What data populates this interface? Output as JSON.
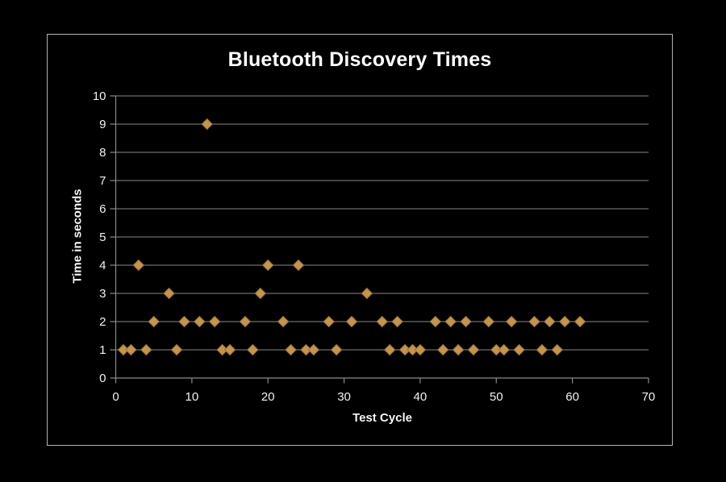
{
  "chart_data": {
    "type": "scatter",
    "title": "Bluetooth Discovery Times",
    "xlabel": "Test Cycle",
    "ylabel": "Time in seconds",
    "xlim": [
      0,
      70
    ],
    "ylim": [
      0,
      10
    ],
    "x_ticks": [
      0,
      10,
      20,
      30,
      40,
      50,
      60,
      70
    ],
    "y_ticks": [
      0,
      1,
      2,
      3,
      4,
      5,
      6,
      7,
      8,
      9,
      10
    ],
    "grid": true,
    "legend": "none",
    "marker": "diamond",
    "colors": {
      "background": "#000000",
      "marker_fill": "#C6954A",
      "marker_edge": "#9b7336",
      "gridline": "#6e6e6e",
      "axis": "#8a8a8a",
      "tick_text": "#f1f1f1",
      "title_text": "#ffffff",
      "frame_border": "#b3b3b3"
    },
    "points": [
      [
        1,
        1
      ],
      [
        2,
        1
      ],
      [
        3,
        4
      ],
      [
        4,
        1
      ],
      [
        5,
        2
      ],
      [
        7,
        3
      ],
      [
        8,
        1
      ],
      [
        9,
        2
      ],
      [
        11,
        2
      ],
      [
        12,
        9
      ],
      [
        13,
        2
      ],
      [
        14,
        1
      ],
      [
        15,
        1
      ],
      [
        17,
        2
      ],
      [
        18,
        1
      ],
      [
        19,
        3
      ],
      [
        20,
        4
      ],
      [
        22,
        2
      ],
      [
        23,
        1
      ],
      [
        24,
        4
      ],
      [
        25,
        1
      ],
      [
        26,
        1
      ],
      [
        28,
        2
      ],
      [
        29,
        1
      ],
      [
        31,
        2
      ],
      [
        33,
        3
      ],
      [
        35,
        2
      ],
      [
        36,
        1
      ],
      [
        37,
        2
      ],
      [
        38,
        1
      ],
      [
        39,
        1
      ],
      [
        40,
        1
      ],
      [
        42,
        2
      ],
      [
        43,
        1
      ],
      [
        44,
        2
      ],
      [
        45,
        1
      ],
      [
        46,
        2
      ],
      [
        47,
        1
      ],
      [
        49,
        2
      ],
      [
        50,
        1
      ],
      [
        51,
        1
      ],
      [
        52,
        2
      ],
      [
        53,
        1
      ],
      [
        55,
        2
      ],
      [
        56,
        1
      ],
      [
        57,
        2
      ],
      [
        58,
        1
      ],
      [
        59,
        2
      ],
      [
        61,
        2
      ]
    ]
  }
}
